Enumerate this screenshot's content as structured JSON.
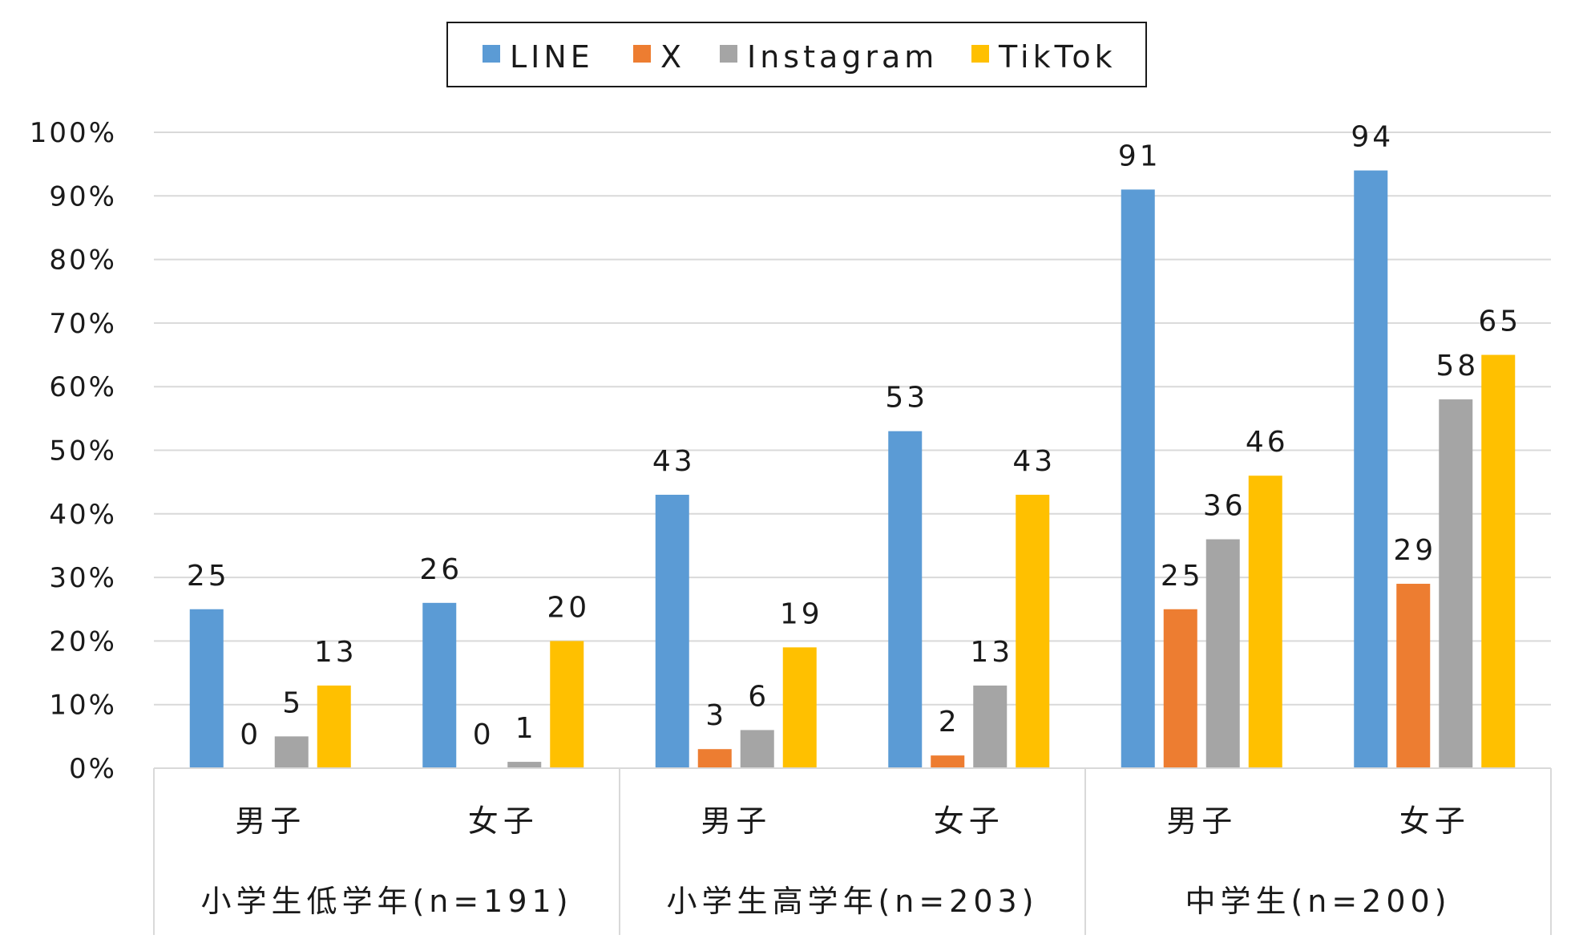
{
  "chart_data": {
    "type": "bar",
    "legend_position": "top",
    "grid": true,
    "ylim": [
      0,
      100
    ],
    "yticks": [
      "0%",
      "10%",
      "20%",
      "30%",
      "40%",
      "50%",
      "60%",
      "70%",
      "80%",
      "90%",
      "100%"
    ],
    "groups": [
      {
        "label": "小学生低学年(n=191)",
        "categories": [
          "男子",
          "女子"
        ]
      },
      {
        "label": "小学生高学年(n=203)",
        "categories": [
          "男子",
          "女子"
        ]
      },
      {
        "label": "中学生(n=200)",
        "categories": [
          "男子",
          "女子"
        ]
      }
    ],
    "series": [
      {
        "name": "LINE",
        "color": "#5b9bd5",
        "values": [
          25,
          26,
          43,
          53,
          91,
          94
        ],
        "labels": [
          "25",
          "26",
          "43",
          "53",
          "91",
          "94"
        ]
      },
      {
        "name": "X",
        "color": "#ed7d31",
        "values": [
          0,
          0,
          3,
          2,
          25,
          29
        ],
        "labels": [
          "0",
          "0",
          "3",
          "2",
          "25",
          "29"
        ]
      },
      {
        "name": "Instagram",
        "color": "#a5a5a5",
        "values": [
          5,
          1,
          6,
          13,
          36,
          58
        ],
        "labels": [
          "5",
          "1",
          "6",
          "13",
          "36",
          "58"
        ]
      },
      {
        "name": "TikTok",
        "color": "#ffc000",
        "values": [
          13,
          20,
          19,
          43,
          46,
          65
        ],
        "labels": [
          "13",
          "20",
          "19",
          "43",
          "46",
          "65"
        ]
      }
    ]
  }
}
